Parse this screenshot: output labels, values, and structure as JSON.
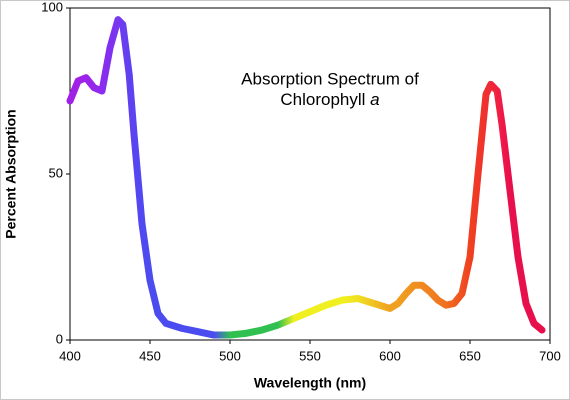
{
  "chart_data": {
    "type": "line",
    "title": {
      "line1": "Absorption Spectrum of",
      "line2": "Chlorophyll",
      "italic": "a"
    },
    "x_label": "Wavelength (nm)",
    "y_label": "Percent Absorption",
    "x": [
      400,
      405,
      410,
      415,
      420,
      425,
      430,
      433,
      437,
      440,
      445,
      450,
      455,
      460,
      470,
      480,
      490,
      500,
      510,
      520,
      530,
      540,
      550,
      560,
      570,
      580,
      590,
      600,
      605,
      610,
      615,
      620,
      625,
      630,
      635,
      640,
      645,
      650,
      655,
      660,
      663,
      667,
      670,
      675,
      680,
      685,
      690,
      695
    ],
    "values": [
      72,
      78,
      79,
      76,
      75,
      88,
      96.5,
      95,
      80,
      62,
      35,
      18,
      8,
      5,
      3.5,
      2.5,
      1.5,
      1.5,
      2,
      3,
      4.5,
      6.5,
      8.5,
      10.5,
      12,
      12.5,
      11,
      9.5,
      11,
      14,
      16.5,
      16.5,
      14.5,
      12,
      10.5,
      11,
      14,
      25,
      50,
      74,
      77,
      75,
      65,
      45,
      25,
      11,
      5,
      3
    ],
    "colors": [
      "#a020e8",
      "#a020e8",
      "#9c24ea",
      "#9428ec",
      "#8c2cee",
      "#8030f0",
      "#7838f0",
      "#6c3cf0",
      "#6040f0",
      "#5844f0",
      "#5048f0",
      "#4c4cf0",
      "#4a4cf0",
      "#4a4cf0",
      "#4a4cf0",
      "#4a4cf0",
      "#4a4cf0",
      "#30c050",
      "#30c050",
      "#30c050",
      "#30c050",
      "#f0f020",
      "#f0f020",
      "#f0f020",
      "#f0f020",
      "#f0e020",
      "#f0c020",
      "#f0a020",
      "#f0a020",
      "#f09820",
      "#f09020",
      "#f08820",
      "#f08020",
      "#f07820",
      "#f07020",
      "#f06020",
      "#f05020",
      "#f04020",
      "#f03828",
      "#f03030",
      "#f02838",
      "#f02040",
      "#f01848",
      "#e8104c",
      "#e8104c",
      "#e8104c",
      "#e8104c",
      "#e8104c"
    ],
    "xlim": [
      400,
      700
    ],
    "xticks": [
      400,
      450,
      500,
      550,
      600,
      650,
      700
    ],
    "ylim": [
      0,
      100
    ],
    "yticks": [
      0,
      50,
      100
    ]
  }
}
